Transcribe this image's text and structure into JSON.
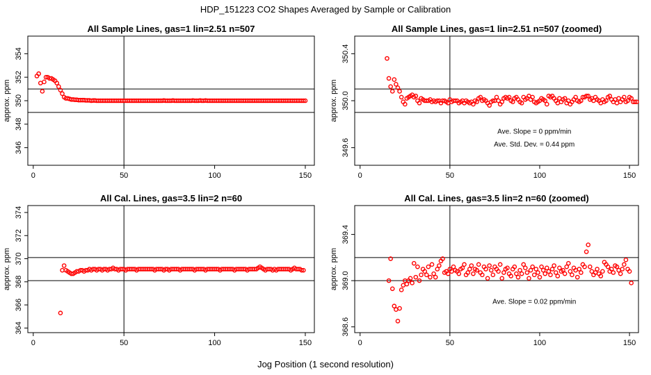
{
  "title": "HDP_151223  CO2 Shapes Averaged by Sample or Calibration",
  "xlabel": "Jog Position (1 second resolution)",
  "colors": {
    "points": "#ff0000",
    "axes": "#000000"
  },
  "chart_data": [
    {
      "type": "scatter",
      "title": "All Sample Lines, gas=1 lin=2.51 n=507",
      "ylabel": "approx. ppm",
      "xlim": [
        -3,
        155
      ],
      "ylim": [
        344.5,
        355.5
      ],
      "xticks": [
        "0",
        "50",
        "100",
        "150"
      ],
      "xtick_values": [
        0,
        50,
        100,
        150
      ],
      "yticks": [
        "346",
        "348",
        "350",
        "352",
        "354"
      ],
      "ytick_values": [
        346,
        348,
        350,
        352,
        354
      ],
      "vline": 50,
      "hlines": [
        351,
        349
      ],
      "annotations": [],
      "series": [
        {
          "x_start": 2,
          "values": [
            352.1,
            352.3,
            351.5,
            350.8,
            351.6,
            352.0,
            352.0,
            351.9,
            351.9,
            351.8,
            351.7,
            351.5,
            351.2,
            350.9,
            350.6,
            350.3,
            350.2,
            350.2,
            350.15,
            350.1,
            350.1,
            350.08,
            350.08,
            350.05,
            350.05,
            350.05,
            350.05,
            350.03,
            350.03,
            350.03,
            350.0,
            350.02,
            350.02,
            350.0,
            350.0,
            350.0,
            350.0,
            350.0,
            350.0,
            350.0,
            350.0,
            350.0,
            350.0,
            350.0,
            350.0,
            350.0,
            350.0,
            350.0,
            350.0,
            350.0,
            350.0,
            350.0,
            350.0,
            350.0,
            350.0,
            350.0,
            350.0,
            350.0,
            350.0,
            350.0,
            350.0,
            350.0,
            350.0,
            350.0,
            350.0,
            350.0,
            350.0,
            350.0,
            350.0,
            350.0,
            350.02,
            350.0,
            350.0,
            350.0,
            350.0,
            350.02,
            350.0,
            350.0,
            350.0,
            350.0,
            350.0,
            350.0,
            350.0,
            350.0,
            350.0,
            350.0,
            350.02,
            350.0,
            350.0,
            350.0,
            350.02,
            350.0,
            350.0,
            350.02,
            350.0,
            350.0,
            350.0,
            350.0,
            350.0,
            350.0,
            350.0,
            350.0,
            350.0,
            350.0,
            350.0,
            350.0,
            350.0,
            350.0,
            350.0,
            350.0,
            350.0,
            350.0,
            350.0,
            350.0,
            350.0,
            350.0,
            350.0,
            350.0,
            350.0,
            350.0,
            350.0,
            350.0,
            350.0,
            350.0,
            350.0,
            350.0,
            350.0,
            350.0,
            350.0,
            350.0,
            350.0,
            350.0,
            350.0,
            350.0,
            350.0,
            350.0,
            350.0,
            350.0,
            350.0,
            350.0,
            350.0,
            350.0,
            350.0,
            350.0,
            350.0,
            350.0,
            350.0,
            350.0,
            350.0
          ]
        }
      ]
    },
    {
      "type": "scatter",
      "title": "All Sample Lines, gas=1 lin=2.51 n=507 (zoomed)",
      "ylabel": "approx. ppm",
      "xlim": [
        -3,
        155
      ],
      "ylim": [
        349.45,
        350.55
      ],
      "xticks": [
        "0",
        "50",
        "100",
        "150"
      ],
      "xtick_values": [
        0,
        50,
        100,
        150
      ],
      "yticks": [
        "349.6",
        "350.0",
        "350.4"
      ],
      "ytick_values": [
        349.6,
        350.0,
        350.4
      ],
      "vline": 50,
      "hlines": [
        350.1,
        349.9
      ],
      "annotations": [
        {
          "text": "Ave. Slope =  0  ppm/min",
          "x": 97,
          "y": 349.72
        },
        {
          "text": "Ave. Std. Dev. =  0.44  ppm",
          "x": 97,
          "y": 349.61
        }
      ],
      "series": [
        {
          "x_start": 15,
          "values": [
            350.36,
            350.19,
            350.12,
            350.08,
            350.18,
            350.14,
            350.11,
            350.08,
            350.03,
            349.99,
            349.97,
            350.02,
            350.03,
            350.04,
            350.05,
            350.03,
            350.04,
            350.0,
            349.98,
            350.02,
            350.01,
            350.0,
            350.0,
            350.0,
            350.01,
            349.99,
            350.0,
            349.99,
            350.0,
            350.0,
            349.98,
            350.0,
            350.0,
            349.99,
            349.98,
            350.01,
            349.99,
            350.0,
            350.0,
            350.0,
            349.98,
            349.99,
            350.0,
            349.98,
            350.0,
            349.99,
            349.98,
            349.99,
            349.97,
            350.0,
            349.99,
            350.02,
            350.03,
            350.0,
            350.01,
            350.0,
            349.98,
            349.96,
            349.99,
            350.0,
            350.0,
            350.03,
            350.0,
            349.97,
            349.99,
            350.02,
            350.03,
            350.02,
            350.03,
            350.0,
            349.99,
            350.02,
            350.03,
            350.01,
            349.99,
            349.98,
            350.03,
            350.01,
            350.02,
            350.04,
            350.01,
            350.03,
            349.99,
            349.98,
            349.99,
            350.0,
            350.02,
            350.01,
            350.0,
            349.97,
            350.04,
            350.03,
            350.04,
            350.02,
            350.0,
            349.98,
            350.02,
            349.99,
            350.01,
            350.02,
            349.98,
            350.0,
            349.97,
            349.99,
            350.01,
            350.03,
            350.0,
            349.99,
            350.0,
            350.03,
            350.03,
            350.04,
            350.04,
            350.01,
            350.02,
            350.0,
            350.03,
            350.01,
            350.0,
            349.98,
            350.01,
            349.99,
            350.0,
            350.03,
            350.04,
            350.01,
            349.99,
            350.01,
            349.98,
            350.02,
            349.99,
            350.01,
            350.03,
            349.99,
            350.0,
            350.03,
            350.02,
            349.99,
            349.99,
            349.99
          ]
        }
      ]
    },
    {
      "type": "scatter",
      "title": "All Cal. Lines, gas=3.5 lin=2 n=60",
      "ylabel": "approx. ppm",
      "xlim": [
        -3,
        155
      ],
      "ylim": [
        363.6,
        374.6
      ],
      "xticks": [
        "0",
        "50",
        "100",
        "150"
      ],
      "xtick_values": [
        0,
        50,
        100,
        150
      ],
      "yticks": [
        "364",
        "366",
        "368",
        "370",
        "372",
        "374"
      ],
      "ytick_values": [
        364,
        366,
        368,
        370,
        372,
        374
      ],
      "vline": 50,
      "hlines": [
        370.1,
        368.1
      ],
      "annotations": [],
      "series": [
        {
          "x_start": 15,
          "values": [
            365.3,
            369.0,
            369.4,
            369.0,
            368.9,
            368.8,
            368.7,
            368.7,
            368.8,
            368.9,
            368.9,
            369.0,
            369.0,
            368.9,
            369.0,
            369.0,
            369.1,
            369.0,
            369.1,
            369.1,
            369.0,
            369.1,
            369.1,
            369.0,
            369.1,
            369.1,
            369.0,
            369.1,
            369.1,
            369.2,
            369.1,
            369.1,
            369.0,
            369.1,
            369.1,
            369.1,
            369.0,
            369.1,
            369.1,
            369.1,
            369.1,
            369.1,
            369.0,
            369.1,
            369.1,
            369.1,
            369.1,
            369.1,
            369.1,
            369.1,
            369.1,
            369.1,
            369.0,
            369.1,
            369.1,
            369.1,
            369.1,
            369.0,
            369.1,
            369.1,
            369.0,
            369.1,
            369.1,
            369.1,
            369.1,
            369.1,
            369.0,
            369.1,
            369.1,
            369.1,
            369.1,
            369.1,
            369.1,
            369.1,
            369.0,
            369.1,
            369.1,
            369.1,
            369.1,
            369.1,
            369.0,
            369.1,
            369.1,
            369.1,
            369.1,
            369.1,
            369.1,
            369.1,
            369.0,
            369.1,
            369.1,
            369.1,
            369.1,
            369.1,
            369.1,
            369.1,
            369.0,
            369.1,
            369.1,
            369.1,
            369.1,
            369.1,
            369.1,
            369.0,
            369.1,
            369.1,
            369.1,
            369.1,
            369.1,
            369.2,
            369.3,
            369.2,
            369.1,
            369.0,
            369.1,
            369.1,
            369.1,
            369.0,
            369.1,
            369.0,
            369.1,
            369.1,
            369.1,
            369.1,
            369.1,
            369.1,
            369.1,
            369.0,
            369.1,
            369.2,
            369.1,
            369.1,
            369.1,
            369.0,
            369.0
          ]
        }
      ]
    },
    {
      "type": "scatter",
      "title": "All Cal. Lines, gas=3.5 lin=2 n=60 (zoomed)",
      "ylabel": "approx. ppm",
      "xlim": [
        -3,
        155
      ],
      "ylim": [
        368.55,
        369.65
      ],
      "xticks": [
        "0",
        "50",
        "100",
        "150"
      ],
      "xtick_values": [
        0,
        50,
        100,
        150
      ],
      "yticks": [
        "368.6",
        "369.0",
        "369.4"
      ],
      "ytick_values": [
        368.6,
        369.0,
        369.4
      ],
      "vline": 50,
      "hlines": [
        369.2,
        369.0
      ],
      "annotations": [
        {
          "text": "Ave. Slope =  0.02  ppm/min",
          "x": 97,
          "y": 368.8
        }
      ],
      "series": [
        {
          "x_start": 16,
          "values": [
            369.0,
            369.19,
            368.93,
            368.78,
            368.75,
            368.65,
            368.76,
            368.92,
            368.96,
            369.0,
            368.97,
            369.0,
            369.02,
            368.98,
            369.15,
            369.03,
            369.12,
            369.0,
            369.05,
            369.1,
            369.08,
            369.05,
            369.12,
            369.03,
            369.14,
            369.06,
            369.03,
            369.1,
            369.13,
            369.17,
            369.19,
            369.07,
            369.08,
            369.06,
            369.1,
            369.08,
            369.12,
            369.09,
            369.08,
            369.06,
            369.1,
            369.11,
            369.14,
            369.05,
            369.07,
            369.1,
            369.13,
            369.06,
            369.1,
            369.09,
            369.14,
            369.07,
            369.05,
            369.12,
            369.1,
            369.02,
            369.13,
            369.09,
            369.05,
            369.12,
            369.1,
            369.08,
            369.14,
            369.02,
            369.07,
            369.1,
            369.11,
            369.06,
            369.04,
            369.1,
            369.12,
            369.06,
            369.03,
            369.09,
            369.06,
            369.14,
            369.11,
            369.07,
            369.02,
            369.09,
            369.12,
            369.05,
            369.1,
            369.07,
            369.03,
            369.12,
            369.09,
            369.06,
            369.11,
            369.08,
            369.05,
            369.1,
            369.13,
            369.07,
            369.04,
            369.11,
            369.08,
            369.09,
            369.06,
            369.12,
            369.15,
            369.08,
            369.05,
            369.11,
            369.09,
            369.03,
            369.1,
            369.07,
            369.14,
            369.12,
            369.25,
            369.31,
            369.12,
            369.08,
            369.05,
            369.07,
            369.1,
            369.06,
            369.04,
            369.08,
            369.16,
            369.14,
            369.12,
            369.08,
            369.1,
            369.07,
            369.13,
            369.12,
            369.09,
            369.06,
            369.1,
            369.14,
            369.18,
            369.1,
            369.08,
            368.98
          ]
        }
      ]
    }
  ]
}
